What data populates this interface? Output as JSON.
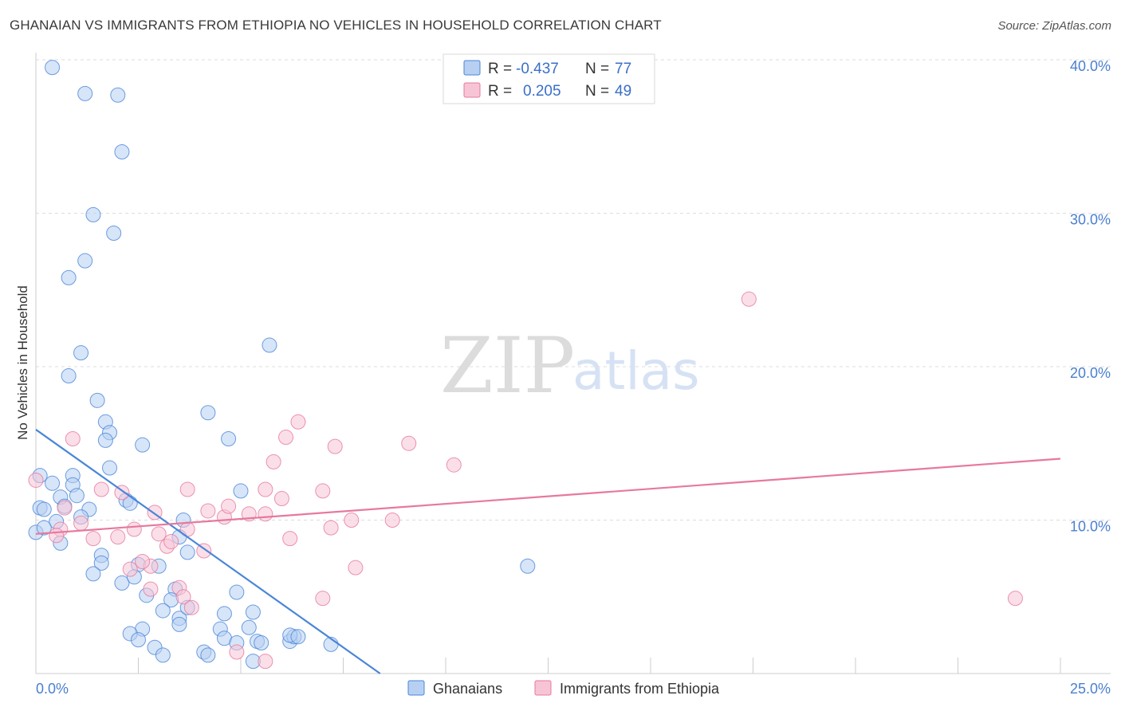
{
  "title": "GHANAIAN VS IMMIGRANTS FROM ETHIOPIA NO VEHICLES IN HOUSEHOLD CORRELATION CHART",
  "source": "Source: ZipAtlas.com",
  "watermark": {
    "zip": "ZIP",
    "atlas": "atlas"
  },
  "colors": {
    "blue": "#4a86d8",
    "blue_fill": "#b7d0f2",
    "pink": "#e6799f",
    "pink_fill": "#f7c4d6",
    "tick": "#4a7fd0"
  },
  "legend": {
    "rows": [
      {
        "r_label": "R =",
        "r_value": "-0.437",
        "n_label": "N =",
        "n_value": "77"
      },
      {
        "r_label": "R =",
        "r_value": "0.205",
        "n_label": "N =",
        "n_value": "49"
      }
    ]
  },
  "chart_data": {
    "type": "scatter",
    "title": "GHANAIAN VS IMMIGRANTS FROM ETHIOPIA NO VEHICLES IN HOUSEHOLD CORRELATION CHART",
    "xlabel": "",
    "ylabel": "No Vehicles in Household",
    "xlim": [
      0,
      25
    ],
    "ylim": [
      0,
      40
    ],
    "x_tick_labels": [
      "0.0%",
      "25.0%"
    ],
    "y_ticks": [
      10,
      20,
      30,
      40
    ],
    "y_tick_labels": [
      "10.0%",
      "20.0%",
      "30.0%",
      "40.0%"
    ],
    "grid": true,
    "legend_position": "top-center",
    "series": [
      {
        "name": "Ghanaians",
        "color": "#4a86d8",
        "r": -0.437,
        "n": 77,
        "trend": {
          "x": [
            0,
            8.4
          ],
          "y": [
            15.9,
            0
          ]
        },
        "points": [
          [
            0.4,
            39.5
          ],
          [
            1.2,
            37.8
          ],
          [
            2.0,
            37.7
          ],
          [
            2.1,
            34.0
          ],
          [
            1.4,
            29.9
          ],
          [
            1.9,
            28.7
          ],
          [
            1.2,
            26.9
          ],
          [
            0.8,
            25.8
          ],
          [
            5.7,
            21.4
          ],
          [
            1.1,
            20.9
          ],
          [
            0.8,
            19.4
          ],
          [
            1.5,
            17.8
          ],
          [
            4.2,
            17.0
          ],
          [
            1.7,
            16.4
          ],
          [
            1.8,
            15.7
          ],
          [
            2.6,
            14.9
          ],
          [
            1.7,
            15.2
          ],
          [
            4.7,
            15.3
          ],
          [
            1.8,
            13.4
          ],
          [
            0.1,
            12.9
          ],
          [
            0.4,
            12.4
          ],
          [
            0.9,
            12.9
          ],
          [
            0.9,
            12.3
          ],
          [
            0.6,
            11.5
          ],
          [
            1.0,
            11.6
          ],
          [
            2.2,
            11.3
          ],
          [
            2.3,
            11.1
          ],
          [
            5.0,
            11.9
          ],
          [
            0.1,
            10.8
          ],
          [
            0.2,
            10.7
          ],
          [
            0.7,
            10.9
          ],
          [
            1.3,
            10.7
          ],
          [
            0.5,
            9.9
          ],
          [
            1.1,
            10.2
          ],
          [
            3.6,
            10.0
          ],
          [
            0.0,
            9.2
          ],
          [
            0.2,
            9.5
          ],
          [
            0.6,
            8.5
          ],
          [
            3.7,
            7.9
          ],
          [
            1.6,
            7.7
          ],
          [
            1.6,
            7.2
          ],
          [
            3.5,
            8.9
          ],
          [
            3.0,
            7.0
          ],
          [
            1.4,
            6.5
          ],
          [
            2.5,
            7.1
          ],
          [
            2.1,
            5.9
          ],
          [
            2.4,
            6.3
          ],
          [
            2.7,
            5.1
          ],
          [
            3.4,
            5.5
          ],
          [
            4.9,
            5.3
          ],
          [
            3.3,
            4.8
          ],
          [
            3.1,
            4.1
          ],
          [
            3.5,
            3.6
          ],
          [
            3.7,
            4.3
          ],
          [
            3.5,
            3.2
          ],
          [
            4.6,
            3.9
          ],
          [
            5.3,
            4.0
          ],
          [
            2.6,
            2.9
          ],
          [
            2.3,
            2.6
          ],
          [
            2.5,
            2.2
          ],
          [
            4.5,
            2.9
          ],
          [
            4.6,
            2.3
          ],
          [
            4.9,
            2.0
          ],
          [
            5.2,
            3.0
          ],
          [
            5.4,
            2.1
          ],
          [
            5.5,
            2.0
          ],
          [
            6.2,
            2.1
          ],
          [
            6.3,
            2.4
          ],
          [
            6.2,
            2.5
          ],
          [
            6.4,
            2.4
          ],
          [
            2.9,
            1.7
          ],
          [
            3.1,
            1.2
          ],
          [
            4.1,
            1.4
          ],
          [
            4.2,
            1.2
          ],
          [
            5.3,
            0.8
          ],
          [
            7.2,
            1.9
          ],
          [
            12.0,
            7.0
          ]
        ]
      },
      {
        "name": "Immigrants from Ethiopia",
        "color": "#e6799f",
        "r": 0.205,
        "n": 49,
        "trend": {
          "x": [
            0,
            25
          ],
          "y": [
            9.1,
            14.0
          ]
        },
        "points": [
          [
            0.0,
            12.6
          ],
          [
            0.9,
            15.3
          ],
          [
            1.6,
            12.0
          ],
          [
            2.1,
            11.8
          ],
          [
            0.7,
            10.8
          ],
          [
            1.1,
            9.8
          ],
          [
            0.6,
            9.4
          ],
          [
            0.5,
            9.0
          ],
          [
            1.4,
            8.8
          ],
          [
            2.0,
            8.9
          ],
          [
            2.4,
            9.4
          ],
          [
            2.9,
            10.5
          ],
          [
            3.0,
            9.1
          ],
          [
            3.2,
            8.3
          ],
          [
            3.7,
            9.4
          ],
          [
            4.2,
            10.6
          ],
          [
            4.6,
            10.2
          ],
          [
            4.7,
            10.9
          ],
          [
            5.2,
            10.4
          ],
          [
            5.6,
            10.4
          ],
          [
            2.8,
            7.0
          ],
          [
            2.6,
            7.3
          ],
          [
            2.3,
            6.8
          ],
          [
            3.3,
            8.6
          ],
          [
            3.5,
            5.6
          ],
          [
            3.6,
            5.0
          ],
          [
            2.8,
            5.5
          ],
          [
            4.1,
            8.0
          ],
          [
            3.8,
            4.3
          ],
          [
            3.7,
            12.0
          ],
          [
            5.6,
            12.0
          ],
          [
            6.0,
            11.4
          ],
          [
            5.8,
            13.8
          ],
          [
            6.1,
            15.4
          ],
          [
            6.4,
            16.4
          ],
          [
            7.3,
            14.8
          ],
          [
            7.0,
            11.9
          ],
          [
            7.2,
            9.5
          ],
          [
            7.7,
            10.0
          ],
          [
            6.2,
            8.8
          ],
          [
            7.8,
            6.9
          ],
          [
            8.7,
            10.0
          ],
          [
            9.1,
            15.0
          ],
          [
            10.2,
            13.6
          ],
          [
            7.0,
            4.9
          ],
          [
            5.6,
            0.8
          ],
          [
            4.9,
            1.4
          ],
          [
            17.4,
            24.4
          ],
          [
            23.9,
            4.9
          ]
        ]
      }
    ]
  }
}
